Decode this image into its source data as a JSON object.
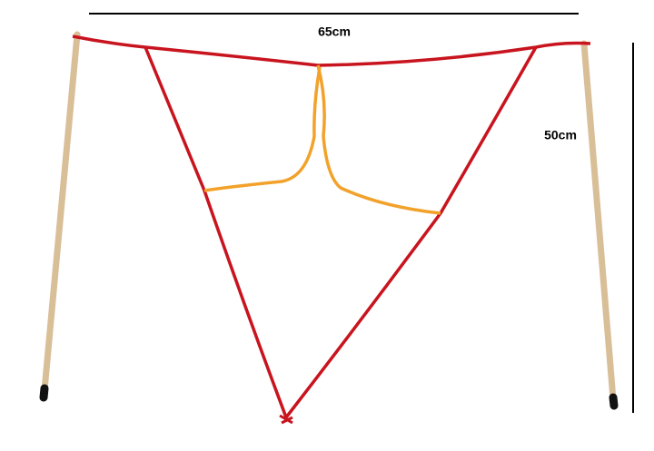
{
  "dimensions": {
    "width_label": "65cm",
    "height_label": "50cm"
  }
}
